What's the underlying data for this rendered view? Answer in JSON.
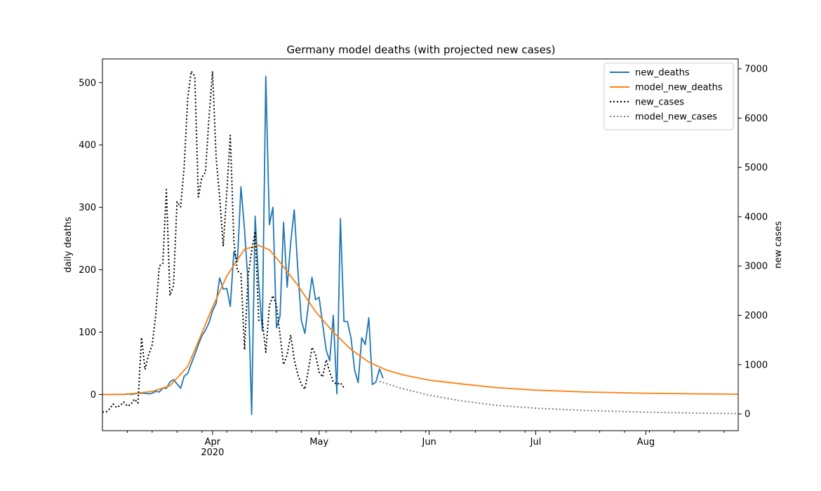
{
  "chart_data": {
    "type": "line",
    "title": "Germany model deaths (with projected new cases)",
    "ylabel_left": "daily deaths",
    "ylabel_right": "new cases",
    "x_start": "2020-03-01",
    "x_end": "2020-08-27",
    "ylim_left": [
      -58,
      538
    ],
    "ylim_right": [
      -340,
      7200
    ],
    "yticks_left": [
      0,
      100,
      200,
      300,
      400,
      500
    ],
    "yticks_right": [
      0,
      1000,
      2000,
      3000,
      4000,
      5000,
      6000,
      7000
    ],
    "x_major_ticks": [
      {
        "date": "2020-04-01",
        "label": "Apr",
        "sublabel": "2020"
      },
      {
        "date": "2020-05-01",
        "label": "May",
        "sublabel": ""
      },
      {
        "date": "2020-06-01",
        "label": "Jun",
        "sublabel": ""
      },
      {
        "date": "2020-07-01",
        "label": "Jul",
        "sublabel": ""
      },
      {
        "date": "2020-08-01",
        "label": "Aug",
        "sublabel": ""
      }
    ],
    "x_minor_ticks": [
      "2020-03-08",
      "2020-03-15",
      "2020-03-22",
      "2020-03-29",
      "2020-04-05",
      "2020-04-12",
      "2020-04-19",
      "2020-04-26",
      "2020-05-03",
      "2020-05-10",
      "2020-05-17",
      "2020-05-24",
      "2020-05-31",
      "2020-06-07",
      "2020-06-14",
      "2020-06-21",
      "2020-06-28",
      "2020-07-05",
      "2020-07-12",
      "2020-07-19",
      "2020-07-26",
      "2020-08-02",
      "2020-08-09",
      "2020-08-16",
      "2020-08-23"
    ],
    "legend_position": "top-right",
    "colors": {
      "new_deaths": "#1f77b4",
      "model_new_deaths": "#ff7f0e",
      "new_cases": "#000000",
      "model_new_cases": "#808080"
    },
    "series": [
      {
        "name": "new_deaths",
        "axis": "left",
        "style": "solid",
        "start": "2020-03-01",
        "values": [
          0,
          0,
          0,
          0,
          0,
          0,
          0,
          1,
          0,
          1,
          2,
          2,
          2,
          1,
          2,
          5,
          4,
          10,
          10,
          20,
          24,
          17,
          10,
          29,
          34,
          49,
          64,
          80,
          94,
          103,
          115,
          134,
          146,
          187,
          169,
          170,
          141,
          229,
          213,
          333,
          264,
          180,
          -32,
          286,
          178,
          102,
          510,
          272,
          300,
          107,
          126,
          276,
          172,
          244,
          296,
          201,
          119,
          98,
          145,
          188,
          152,
          156,
          113,
          71,
          54,
          127,
          1,
          282,
          117,
          117,
          90,
          39,
          19,
          91,
          80,
          123,
          16,
          20,
          41,
          26
        ]
      },
      {
        "name": "model_new_deaths",
        "axis": "left",
        "style": "solid",
        "x": [
          "2020-03-01",
          "2020-03-08",
          "2020-03-15",
          "2020-03-20",
          "2020-03-25",
          "2020-03-28",
          "2020-04-01",
          "2020-04-05",
          "2020-04-10",
          "2020-04-14",
          "2020-04-17",
          "2020-04-20",
          "2020-04-25",
          "2020-04-30",
          "2020-05-05",
          "2020-05-10",
          "2020-05-15",
          "2020-05-20",
          "2020-05-25",
          "2020-06-01",
          "2020-06-10",
          "2020-06-20",
          "2020-07-01",
          "2020-07-15",
          "2020-08-01",
          "2020-08-15",
          "2020-08-27"
        ],
        "y": [
          0,
          0.5,
          5,
          14,
          45,
          85,
          140,
          190,
          233,
          239,
          232,
          212,
          175,
          133,
          100,
          72,
          52,
          39,
          31,
          23,
          17,
          11,
          7,
          4,
          2,
          1,
          0.5
        ]
      },
      {
        "name": "new_cases",
        "axis": "right",
        "style": "dotted",
        "start": "2020-03-01",
        "values": [
          40,
          40,
          100,
          200,
          130,
          170,
          240,
          160,
          190,
          300,
          220,
          1550,
          900,
          1200,
          1400,
          2000,
          3000,
          3050,
          4550,
          2400,
          2600,
          4300,
          4200,
          5000,
          6400,
          6950,
          6850,
          4400,
          4800,
          4900,
          6000,
          6950,
          5200,
          4400,
          3400,
          4500,
          5650,
          3500,
          2900,
          2850,
          1300,
          2800,
          3300,
          3700,
          1900,
          1900,
          1250,
          2200,
          2400,
          2200,
          1600,
          1000,
          1200,
          1600,
          1100,
          800,
          600,
          500,
          900,
          1350,
          1200,
          850,
          750,
          1100,
          850,
          650,
          600,
          630,
          530
        ]
      },
      {
        "name": "model_new_cases",
        "axis": "right",
        "style": "dotted",
        "x": [
          "2020-05-18",
          "2020-05-24",
          "2020-06-01",
          "2020-06-10",
          "2020-06-20",
          "2020-07-01",
          "2020-07-15",
          "2020-08-01",
          "2020-08-15",
          "2020-08-27"
        ],
        "y": [
          660,
          520,
          380,
          265,
          175,
          115,
          70,
          35,
          15,
          5
        ]
      }
    ]
  }
}
